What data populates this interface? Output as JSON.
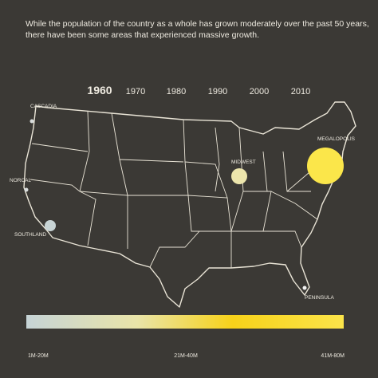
{
  "header": {
    "text_line_1": "While the population of the country as a whole has grown moderately over the past 50 years,",
    "text_line_2": "there have been some areas that experienced massive growth."
  },
  "timeline": {
    "years": [
      "1960",
      "1970",
      "1980",
      "1990",
      "2000",
      "2010"
    ],
    "selected": "1960"
  },
  "regions": [
    {
      "label": "CASCADIA"
    },
    {
      "label": "NORCAL"
    },
    {
      "label": "SOUTHLAND"
    },
    {
      "label": "MIDWEST"
    },
    {
      "label": "MEGALOPOLIS"
    },
    {
      "label": "PENINSULA"
    }
  ],
  "legend": {
    "labels": [
      "1M-20M",
      "21M-40M",
      "41M-80M"
    ]
  }
}
